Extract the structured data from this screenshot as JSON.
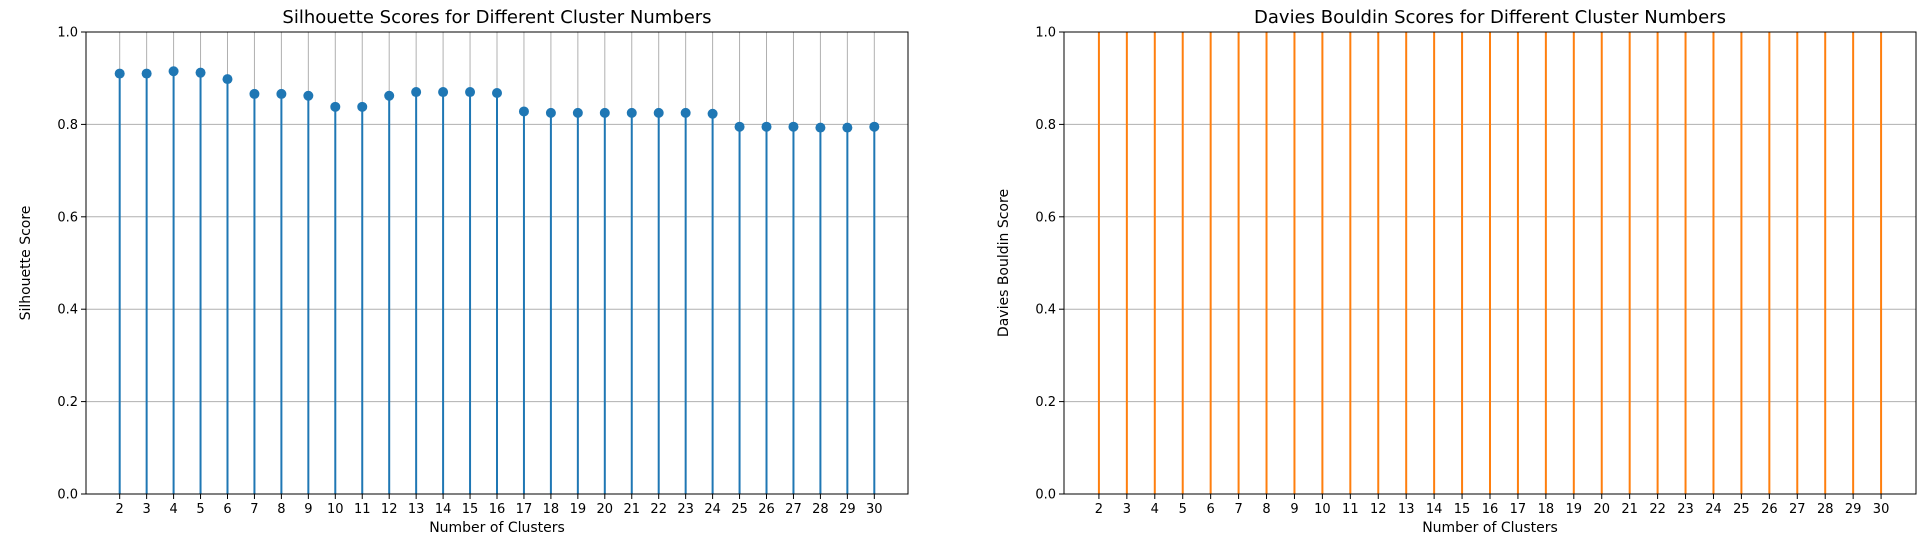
{
  "chart_data": [
    {
      "type": "stem",
      "title": "Silhouette Scores for Different Cluster Numbers",
      "xlabel": "Number of Clusters",
      "ylabel": "Silhouette Score",
      "x": [
        2,
        3,
        4,
        5,
        6,
        7,
        8,
        9,
        10,
        11,
        12,
        13,
        14,
        15,
        16,
        17,
        18,
        19,
        20,
        21,
        22,
        23,
        24,
        25,
        26,
        27,
        28,
        29,
        30
      ],
      "values": [
        0.91,
        0.91,
        0.915,
        0.912,
        0.898,
        0.866,
        0.866,
        0.862,
        0.838,
        0.838,
        0.862,
        0.87,
        0.87,
        0.87,
        0.868,
        0.828,
        0.825,
        0.825,
        0.825,
        0.825,
        0.825,
        0.825,
        0.823,
        0.795,
        0.795,
        0.795,
        0.793,
        0.793,
        0.795
      ],
      "ylim": [
        0,
        1.0
      ],
      "yticks": [
        "0.0",
        "0.2",
        "0.4",
        "0.6",
        "0.8",
        "1.0"
      ],
      "grid": true,
      "color": "#1f77b4",
      "markers": true
    },
    {
      "type": "stem",
      "title": "Davies Bouldin Scores for Different Cluster Numbers",
      "xlabel": "Number of Clusters",
      "ylabel": "Davies Bouldin Score",
      "x": [
        2,
        3,
        4,
        5,
        6,
        7,
        8,
        9,
        10,
        11,
        12,
        13,
        14,
        15,
        16,
        17,
        18,
        19,
        20,
        21,
        22,
        23,
        24,
        25,
        26,
        27,
        28,
        29,
        30
      ],
      "values_note": "all stems extend past the top of the axis",
      "values": [
        1.0,
        1.0,
        1.0,
        1.0,
        1.0,
        1.0,
        1.0,
        1.0,
        1.0,
        1.0,
        1.0,
        1.0,
        1.0,
        1.0,
        1.0,
        1.0,
        1.0,
        1.0,
        1.0,
        1.0,
        1.0,
        1.0,
        1.0,
        1.0,
        1.0,
        1.0,
        1.0,
        1.0,
        1.0
      ],
      "ylim": [
        0,
        1.0
      ],
      "yticks": [
        "0.0",
        "0.2",
        "0.4",
        "0.6",
        "0.8",
        "1.0"
      ],
      "grid": "y-only",
      "color": "#ff7f0e",
      "markers": false
    }
  ]
}
